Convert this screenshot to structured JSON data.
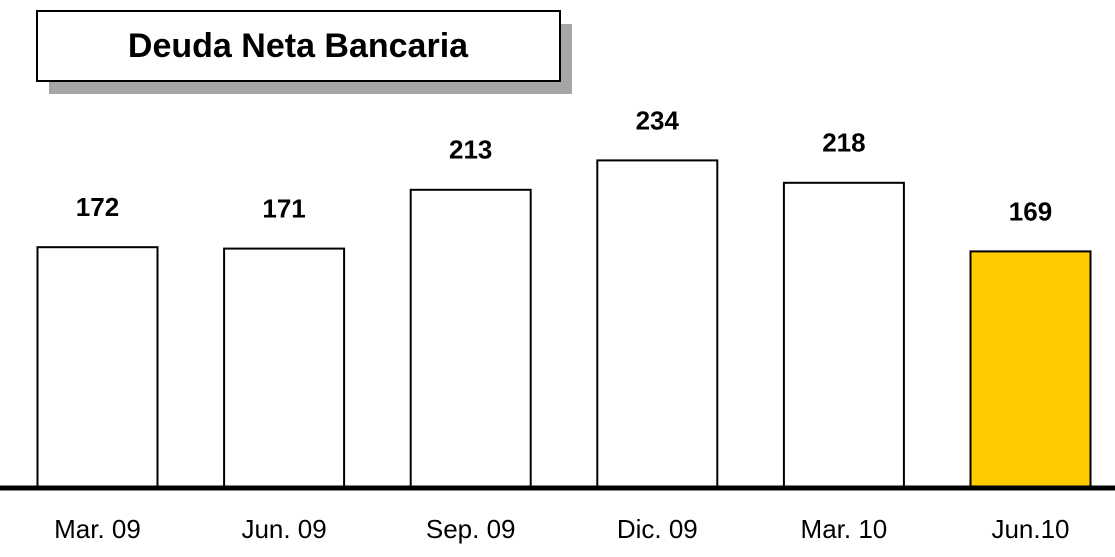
{
  "chart_data": {
    "type": "bar",
    "title": "Deuda Neta Bancaria",
    "categories": [
      "Mar. 09",
      "Jun. 09",
      "Sep. 09",
      "Dic. 09",
      "Mar. 10",
      "Jun.10"
    ],
    "values": [
      172,
      171,
      213,
      234,
      218,
      169
    ],
    "colors": [
      "#ffffff",
      "#ffffff",
      "#ffffff",
      "#ffffff",
      "#ffffff",
      "#ffcc00"
    ]
  }
}
